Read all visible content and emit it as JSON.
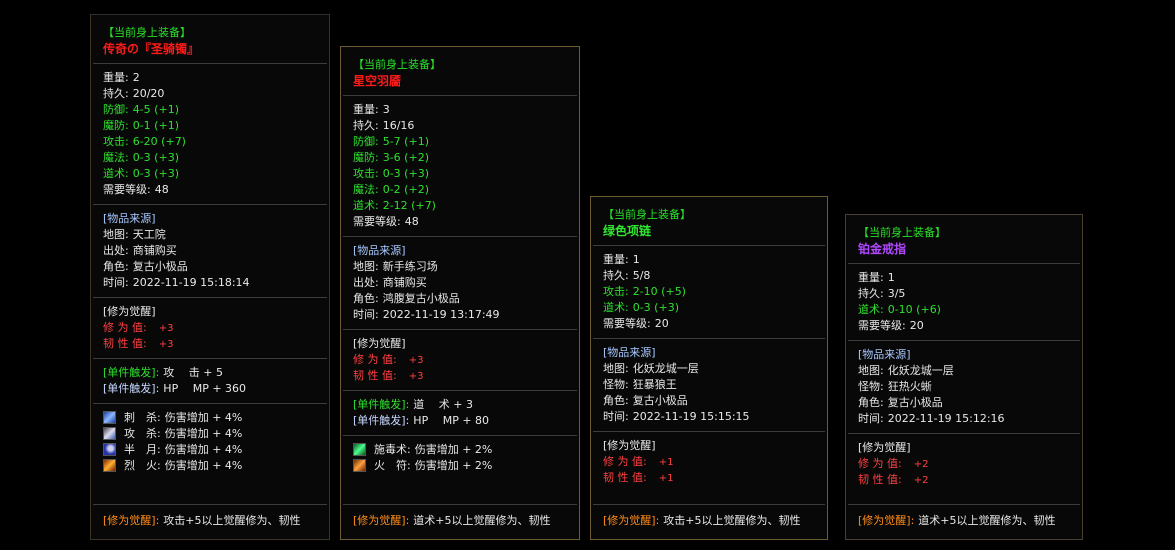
{
  "panels": [
    {
      "header": "【当前身上装备】",
      "name": "传奇の『圣骑镯』",
      "stats": [
        {
          "label": "重量:",
          "value": "2"
        },
        {
          "label": "持久:",
          "value": "20/20"
        },
        {
          "label": "防御:",
          "value": "4-5 (+1)"
        },
        {
          "label": "魔防:",
          "value": "0-1 (+1)"
        },
        {
          "label": "攻击:",
          "value": "6-20 (+7)"
        },
        {
          "label": "魔法:",
          "value": "0-3 (+3)"
        },
        {
          "label": "道术:",
          "value": "0-3 (+3)"
        },
        {
          "label": "需要等级:",
          "value": "48"
        }
      ],
      "source": {
        "title": "[物品来源]",
        "rows": [
          {
            "label": "地图:",
            "value": "天工院"
          },
          {
            "label": "出处:",
            "value": "商铺购买"
          },
          {
            "label": "角色:",
            "value": "复古小极品"
          },
          {
            "label": "时间:",
            "value": "2022-11-19 15:18:14"
          }
        ]
      },
      "awaken": {
        "title": "[修为觉醒]",
        "rows": [
          {
            "label": "修 为 值:",
            "value": "+3"
          },
          {
            "label": "韧 性 值:",
            "value": "+3"
          }
        ]
      },
      "trigger": [
        {
          "label": "[单件触发]:",
          "value": "攻　 击 + 5"
        },
        {
          "label": "[单件触发]:",
          "value": "HP　 MP + 360"
        }
      ],
      "skills": [
        {
          "name": "刺　杀:",
          "effect": "伤害增加 + 4%"
        },
        {
          "name": "攻　杀:",
          "effect": "伤害增加 + 4%"
        },
        {
          "name": "半　月:",
          "effect": "伤害增加 + 4%"
        },
        {
          "name": "烈　火:",
          "effect": "伤害增加 + 4%"
        }
      ],
      "footer": {
        "label": "[修为觉醒]:",
        "text": "攻击+5以上觉醒修为、韧性"
      }
    },
    {
      "header": "【当前身上装备】",
      "name": "星空羽靥",
      "stats": [
        {
          "label": "重量:",
          "value": "3"
        },
        {
          "label": "持久:",
          "value": "16/16"
        },
        {
          "label": "防御:",
          "value": "5-7 (+1)"
        },
        {
          "label": "魔防:",
          "value": "3-6 (+2)"
        },
        {
          "label": "攻击:",
          "value": "0-3 (+3)"
        },
        {
          "label": "魔法:",
          "value": "0-2 (+2)"
        },
        {
          "label": "道术:",
          "value": "2-12 (+7)"
        },
        {
          "label": "需要等级:",
          "value": "48"
        }
      ],
      "source": {
        "title": "[物品来源]",
        "rows": [
          {
            "label": "地图:",
            "value": "新手练习场"
          },
          {
            "label": "出处:",
            "value": "商铺购买"
          },
          {
            "label": "角色:",
            "value": "鸿腹复古小极品"
          },
          {
            "label": "时间:",
            "value": "2022-11-19 13:17:49"
          }
        ]
      },
      "awaken": {
        "title": "[修为觉醒]",
        "rows": [
          {
            "label": "修 为 值:",
            "value": "+3"
          },
          {
            "label": "韧 性 值:",
            "value": "+3"
          }
        ]
      },
      "trigger": [
        {
          "label": "[单件触发]:",
          "value": "道　 术 + 3"
        },
        {
          "label": "[单件触发]:",
          "value": "HP　 MP + 80"
        }
      ],
      "skills": [
        {
          "name": "施毒术:",
          "effect": "伤害增加 + 2%"
        },
        {
          "name": "火　符:",
          "effect": "伤害增加 + 2%"
        }
      ],
      "footer": {
        "label": "[修为觉醒]:",
        "text": "道术+5以上觉醒修为、韧性"
      }
    },
    {
      "header": "【当前身上装备】",
      "name": "绿色项链",
      "stats": [
        {
          "label": "重量:",
          "value": "1"
        },
        {
          "label": "持久:",
          "value": "5/8"
        },
        {
          "label": "攻击:",
          "value": "2-10 (+5)"
        },
        {
          "label": "道术:",
          "value": "0-3 (+3)"
        },
        {
          "label": "需要等级:",
          "value": "20"
        }
      ],
      "source": {
        "title": "[物品来源]",
        "rows": [
          {
            "label": "地图:",
            "value": "化妖龙城一层"
          },
          {
            "label": "怪物:",
            "value": "狂暴狼王"
          },
          {
            "label": "角色:",
            "value": "复古小极品"
          },
          {
            "label": "时间:",
            "value": "2022-11-19 15:15:15"
          }
        ]
      },
      "awaken": {
        "title": "[修为觉醒]",
        "rows": [
          {
            "label": "修 为 值:",
            "value": "+1"
          },
          {
            "label": "韧 性 值:",
            "value": "+1"
          }
        ]
      },
      "footer": {
        "label": "[修为觉醒]:",
        "text": "攻击+5以上觉醒修为、韧性"
      }
    },
    {
      "header": "【当前身上装备】",
      "name": "铂金戒指",
      "stats": [
        {
          "label": "重量:",
          "value": "1"
        },
        {
          "label": "持久:",
          "value": "3/5"
        },
        {
          "label": "道术:",
          "value": "0-10 (+6)"
        },
        {
          "label": "需要等级:",
          "value": "20"
        }
      ],
      "source": {
        "title": "[物品来源]",
        "rows": [
          {
            "label": "地图:",
            "value": "化妖龙城一层"
          },
          {
            "label": "怪物:",
            "value": "狂热火蜥"
          },
          {
            "label": "角色:",
            "value": "复古小极品"
          },
          {
            "label": "时间:",
            "value": "2022-11-19 15:12:16"
          }
        ]
      },
      "awaken": {
        "title": "[修为觉醒]",
        "rows": [
          {
            "label": "修 为 值:",
            "value": "+2"
          },
          {
            "label": "韧 性 值:",
            "value": "+2"
          }
        ]
      },
      "footer": {
        "label": "[修为觉醒]:",
        "text": "道术+5以上觉醒修为、韧性"
      }
    }
  ]
}
